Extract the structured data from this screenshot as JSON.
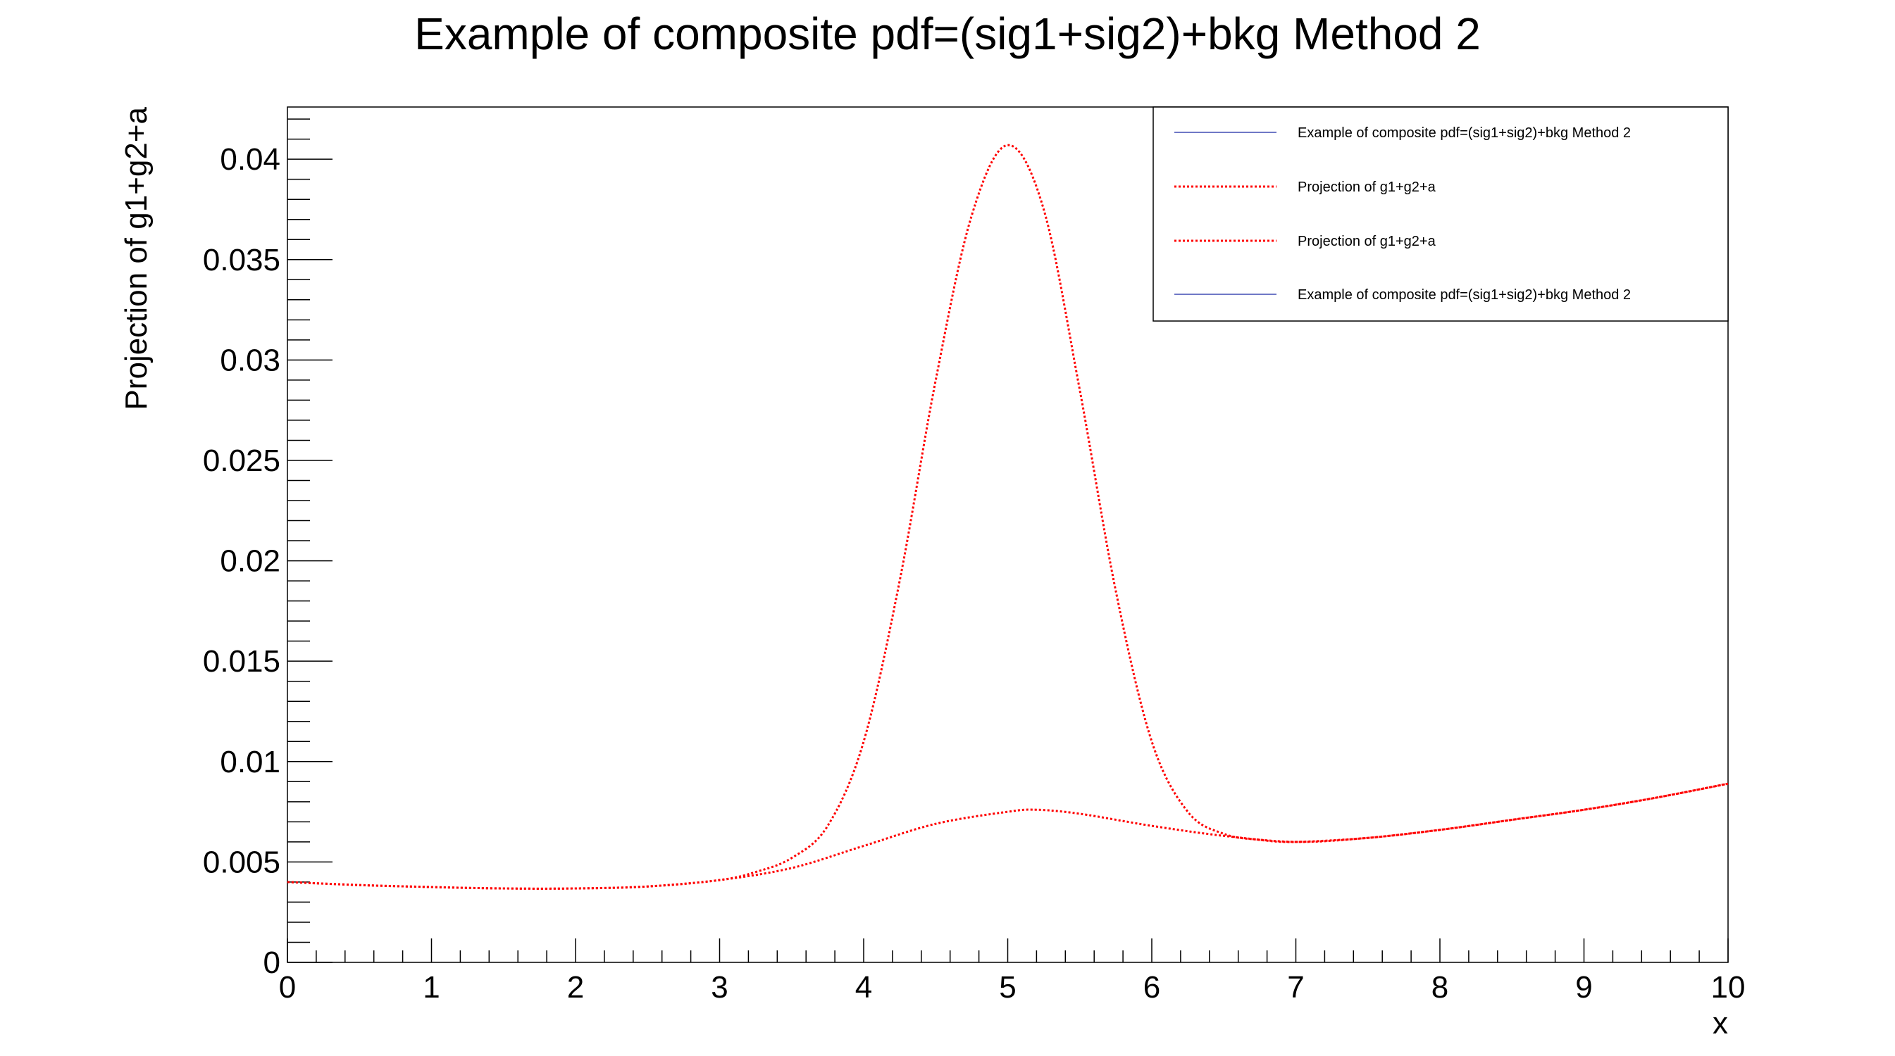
{
  "chart_data": {
    "type": "line",
    "title": "Example of composite pdf=(sig1+sig2)+bkg Method 2",
    "xlabel": "x",
    "ylabel": "Projection of g1+g2+a",
    "xlim": [
      0,
      10
    ],
    "ylim": [
      0,
      0.0426
    ],
    "x_ticks": [
      "0",
      "1",
      "2",
      "3",
      "4",
      "5",
      "6",
      "7",
      "8",
      "9",
      "10"
    ],
    "y_ticks": [
      "0",
      "0.005",
      "0.01",
      "0.015",
      "0.02",
      "0.025",
      "0.03",
      "0.035",
      "0.04"
    ],
    "grid": false,
    "legend_placement": "top-right",
    "legend": [
      {
        "label": "Example of composite pdf=(sig1+sig2)+bkg Method 2",
        "color": "#6f78c6",
        "style": "solid"
      },
      {
        "label": "Projection of g1+g2+a",
        "color": "#ff0000",
        "style": "dotted"
      },
      {
        "label": "Projection of g1+g2+a",
        "color": "#ff0000",
        "style": "dotted"
      },
      {
        "label": "Example of composite pdf=(sig1+sig2)+bkg Method 2",
        "color": "#6f78c6",
        "style": "solid"
      }
    ],
    "series": [
      {
        "color": "#ff0000",
        "style": "dotted",
        "x": [
          0,
          0.5,
          1,
          1.5,
          2,
          2.5,
          3,
          3.25,
          3.5,
          3.75,
          4,
          4.25,
          4.5,
          4.75,
          5,
          5.25,
          5.5,
          5.75,
          6,
          6.25,
          6.5,
          6.75,
          7,
          7.5,
          8,
          8.5,
          9,
          9.5,
          10
        ],
        "y": [
          0.004,
          0.00385,
          0.00375,
          0.00368,
          0.00368,
          0.00378,
          0.0041,
          0.0045,
          0.0052,
          0.0068,
          0.011,
          0.019,
          0.029,
          0.0372,
          0.0407,
          0.0375,
          0.0285,
          0.0185,
          0.011,
          0.0075,
          0.0064,
          0.0061,
          0.006,
          0.0062,
          0.0066,
          0.0071,
          0.0076,
          0.0082,
          0.0089
        ]
      },
      {
        "color": "#ff0000",
        "style": "dotted",
        "x": [
          0,
          0.5,
          1,
          1.5,
          2,
          2.5,
          3,
          3.5,
          4,
          4.5,
          5,
          5.2,
          5.5,
          6,
          6.5,
          7,
          7.5,
          8,
          8.5,
          9,
          9.5,
          10
        ],
        "y": [
          0.004,
          0.00385,
          0.00375,
          0.00368,
          0.00368,
          0.00378,
          0.0041,
          0.0047,
          0.0058,
          0.0069,
          0.0075,
          0.0076,
          0.0074,
          0.0068,
          0.0063,
          0.006,
          0.0062,
          0.0066,
          0.0071,
          0.0076,
          0.0082,
          0.0089
        ]
      }
    ]
  }
}
